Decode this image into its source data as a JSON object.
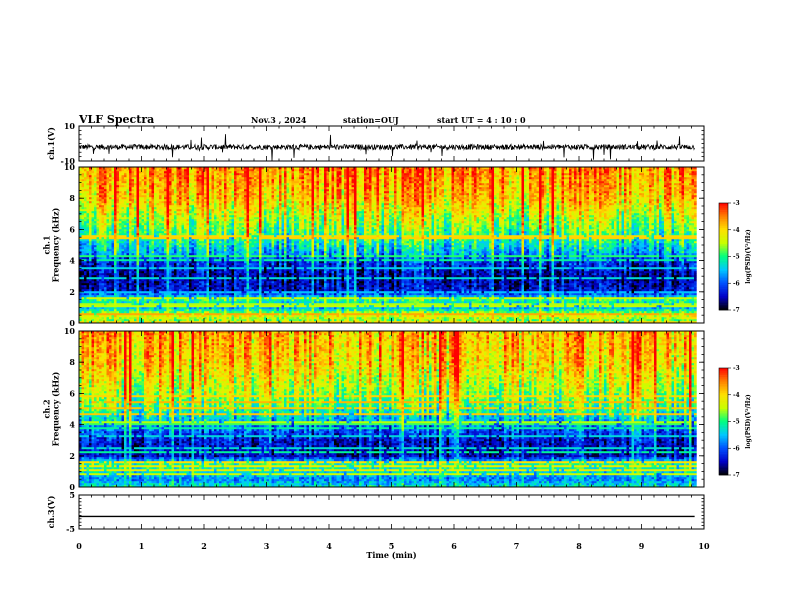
{
  "header": {
    "title": "VLF Spectra",
    "date": "Nov.3 , 2024",
    "station": "station=OUJ",
    "start_ut": "start UT = 4 : 10 : 0"
  },
  "colors": {
    "trace": "#000000",
    "colormap": [
      "#000000",
      "#0000c8",
      "#0050ff",
      "#00c8ff",
      "#00ff80",
      "#c8ff00",
      "#ffe000",
      "#ff8000",
      "#ff0000"
    ]
  },
  "chart_data": [
    {
      "id": "ch1_waveform",
      "type": "line",
      "ylabel": "ch.1(V)",
      "ylim": [
        -10,
        10
      ],
      "ytick_labels": [
        "10",
        "-10"
      ],
      "x_unit": "min",
      "xlim": [
        0,
        10
      ],
      "series": [
        {
          "description_range": [
            0,
            9.85
          ],
          "baseline": -2,
          "noise_amplitude": 1.5,
          "spike_amplitude": 8
        }
      ]
    },
    {
      "id": "ch1_spectrogram",
      "type": "heatmap",
      "ylabel": "ch.1\nFrequency (kHz)",
      "ylim": [
        0,
        10
      ],
      "ytick_labels": [
        "0",
        "2",
        "4",
        "6",
        "8",
        "10"
      ],
      "xlim": [
        0,
        10
      ],
      "data_extent_x": [
        0,
        9.85
      ],
      "z_label": "log(PSD)(V²/Hz)",
      "zlim": [
        -7,
        -3
      ],
      "z_ticks": [
        "-3",
        "-4",
        "-5",
        "-6",
        "-7"
      ],
      "profile": [
        {
          "f": 0.0,
          "z": -5.0
        },
        {
          "f": 0.5,
          "z": -4.2
        },
        {
          "f": 1.0,
          "z": -5.6
        },
        {
          "f": 1.5,
          "z": -5.0
        },
        {
          "f": 2.0,
          "z": -6.4
        },
        {
          "f": 3.0,
          "z": -6.6
        },
        {
          "f": 4.0,
          "z": -6.2
        },
        {
          "f": 4.5,
          "z": -5.6
        },
        {
          "f": 5.5,
          "z": -5.0
        },
        {
          "f": 6.5,
          "z": -4.6
        },
        {
          "f": 8.0,
          "z": -3.9
        },
        {
          "f": 10.0,
          "z": -3.6
        }
      ]
    },
    {
      "id": "ch2_spectrogram",
      "type": "heatmap",
      "ylabel": "ch.2\nFrequency (kHz)",
      "ylim": [
        0,
        10
      ],
      "ytick_labels": [
        "0",
        "2",
        "4",
        "6",
        "8",
        "10"
      ],
      "xlim": [
        0,
        10
      ],
      "data_extent_x": [
        0,
        9.85
      ],
      "z_label": "log(PSD)(V²/Hz)",
      "zlim": [
        -7,
        -3
      ],
      "z_ticks": [
        "-3",
        "-4",
        "-5",
        "-6",
        "-7"
      ],
      "profile": [
        {
          "f": 0.0,
          "z": -5.2
        },
        {
          "f": 0.5,
          "z": -5.8
        },
        {
          "f": 1.0,
          "z": -5.3
        },
        {
          "f": 1.5,
          "z": -5.0
        },
        {
          "f": 2.0,
          "z": -6.5
        },
        {
          "f": 3.0,
          "z": -6.4
        },
        {
          "f": 4.0,
          "z": -5.8
        },
        {
          "f": 5.0,
          "z": -5.0
        },
        {
          "f": 6.5,
          "z": -4.4
        },
        {
          "f": 8.0,
          "z": -4.0
        },
        {
          "f": 10.0,
          "z": -3.8
        }
      ]
    },
    {
      "id": "ch3_waveform",
      "type": "line",
      "ylabel": "ch.3(V)",
      "ylim": [
        -5,
        5
      ],
      "ytick_labels": [
        "5",
        "-5"
      ],
      "xlabel": "Time (min)",
      "xlim": [
        0,
        10
      ],
      "xtick_labels": [
        "0",
        "1",
        "2",
        "3",
        "4",
        "5",
        "6",
        "7",
        "8",
        "9",
        "10"
      ],
      "series": [
        {
          "description_range": [
            0,
            9.85
          ],
          "constant": -1.3
        }
      ]
    }
  ]
}
